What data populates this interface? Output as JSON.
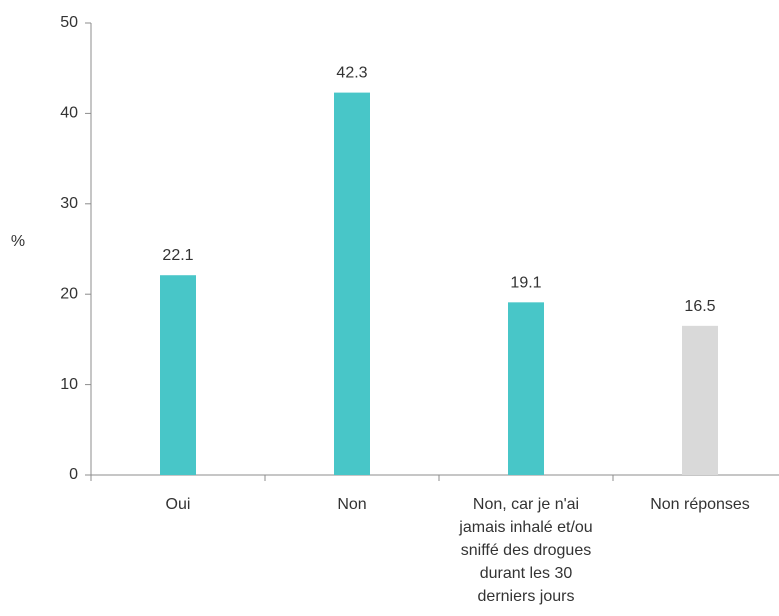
{
  "chart_data": {
    "type": "bar",
    "title": "",
    "xlabel": "",
    "ylabel": "%",
    "ylim": [
      0,
      50
    ],
    "yticks": [
      0,
      10,
      20,
      30,
      40,
      50
    ],
    "grid": false,
    "categories": [
      [
        "Oui"
      ],
      [
        "Non"
      ],
      [
        "Non, car je n'ai",
        "jamais inhalé et/ou",
        "sniffé des drogues",
        "durant les 30",
        "derniers jours"
      ],
      [
        "Non réponses"
      ]
    ],
    "values": [
      22.1,
      42.3,
      19.1,
      16.5
    ],
    "value_labels": [
      "22.1",
      "42.3",
      "19.1",
      "16.5"
    ],
    "colors": [
      "#48C6C8",
      "#48C6C8",
      "#48C6C8",
      "#D9D9D9"
    ],
    "axis_color": "#8C8C8C"
  }
}
